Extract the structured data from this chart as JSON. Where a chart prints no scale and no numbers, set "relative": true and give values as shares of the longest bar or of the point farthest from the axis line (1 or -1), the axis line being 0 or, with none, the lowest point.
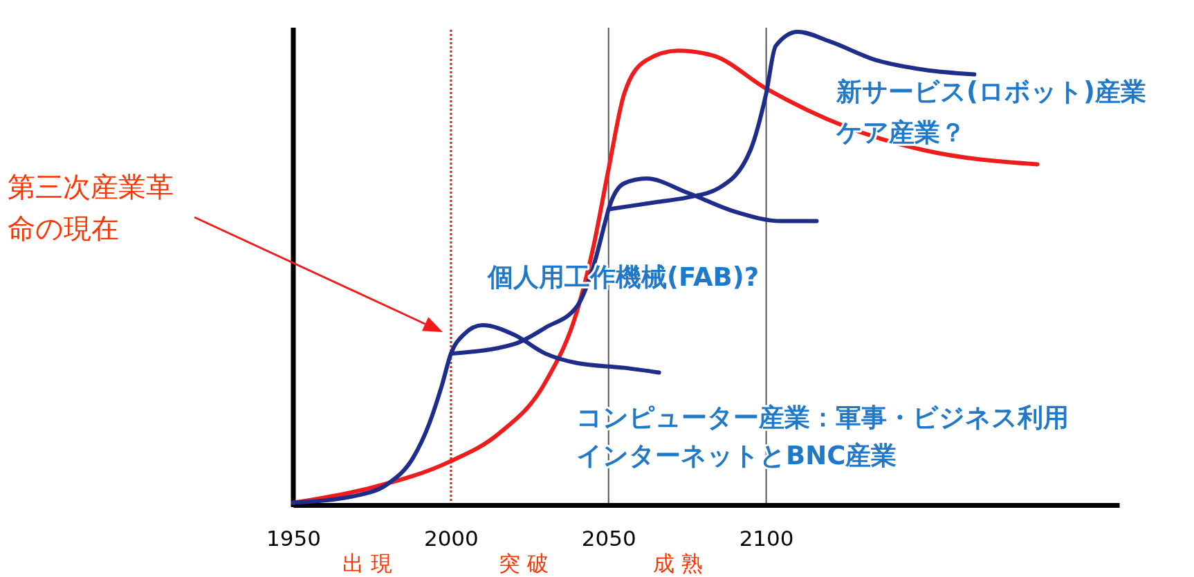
{
  "chart_data": {
    "type": "line",
    "relative": true,
    "xlim": [
      1950,
      2212
    ],
    "xticks": [
      1950,
      2000,
      2050,
      2100
    ],
    "series": [
      {
        "color": "#ee1c1c",
        "x": [
          1950,
          1975,
          2000,
          2015,
          2030,
          2040,
          2045,
          2050,
          2055,
          2062,
          2072,
          2083,
          2100,
          2125,
          2150,
          2186
        ],
        "values": [
          0.005,
          0.037,
          0.093,
          0.15,
          0.26,
          0.41,
          0.54,
          0.71,
          0.87,
          0.94,
          0.96,
          0.95,
          0.88,
          0.8,
          0.75,
          0.72
        ]
      },
      {
        "color": "#1f2d8a",
        "x": [
          1950,
          1970,
          1980,
          1988,
          1993,
          1997,
          2000,
          2004,
          2010,
          2020,
          2030,
          2040,
          2055,
          2066
        ],
        "values": [
          0.005,
          0.02,
          0.045,
          0.1,
          0.17,
          0.25,
          0.32,
          0.36,
          0.38,
          0.36,
          0.32,
          0.3,
          0.29,
          0.28
        ]
      },
      {
        "color": "#1f2d8a",
        "x": [
          2000,
          2020,
          2030,
          2040,
          2045,
          2049,
          2050,
          2055,
          2062,
          2075,
          2090,
          2105,
          2116
        ],
        "values": [
          0.32,
          0.34,
          0.375,
          0.42,
          0.5,
          0.6,
          0.625,
          0.68,
          0.69,
          0.66,
          0.62,
          0.6,
          0.6
        ]
      },
      {
        "color": "#1f2d8a",
        "x": [
          2050,
          2065,
          2075,
          2085,
          2095,
          2100,
          2103,
          2110,
          2120,
          2135,
          2150,
          2166
        ],
        "values": [
          0.625,
          0.64,
          0.65,
          0.67,
          0.75,
          0.87,
          0.97,
          1.0,
          0.98,
          0.94,
          0.92,
          0.91
        ]
      }
    ],
    "ref_lines": [
      {
        "axis": "x",
        "value": 2000,
        "color": "#ee1c1c",
        "line_style": "dotted"
      },
      {
        "axis": "x",
        "value": 2050,
        "color": "#555555",
        "line_style": "solid"
      },
      {
        "axis": "x",
        "value": 2100,
        "color": "#555555",
        "line_style": "solid"
      }
    ],
    "annotations": [
      "第三次産業革命の現在",
      "新サービス(ロボット)産業",
      "ケア産業？",
      "個人用工作機械(FAB)?",
      "コンピューター産業：軍事・ビジネス利用",
      "インターネットとBNC産業",
      "出 現",
      "突 破",
      "成 熟"
    ]
  }
}
